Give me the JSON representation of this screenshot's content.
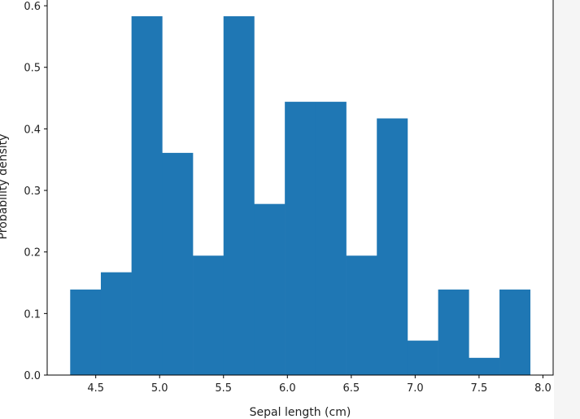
{
  "chart_data": {
    "type": "bar",
    "subtype": "histogram",
    "bin_edges": [
      4.3,
      4.54,
      4.78,
      5.02,
      5.26,
      5.5,
      5.74,
      5.98,
      6.22,
      6.46,
      6.7,
      6.94,
      7.18,
      7.42,
      7.66,
      7.9
    ],
    "values": [
      0.139,
      0.167,
      0.583,
      0.361,
      0.194,
      0.583,
      0.278,
      0.444,
      0.444,
      0.194,
      0.417,
      0.056,
      0.139,
      0.028,
      0.139
    ],
    "xlabel": "Sepal length (cm)",
    "ylabel": "Probability density",
    "xlim": [
      4.12,
      8.08
    ],
    "ylim": [
      0,
      0.612
    ],
    "xticks": [
      4.5,
      5.0,
      5.5,
      6.0,
      6.5,
      7.0,
      7.5,
      8.0
    ],
    "xtick_labels": [
      "4.5",
      "5.0",
      "5.5",
      "6.0",
      "6.5",
      "7.0",
      "7.5",
      "8.0"
    ],
    "yticks": [
      0.0,
      0.1,
      0.2,
      0.3,
      0.4,
      0.5,
      0.6
    ],
    "ytick_labels": [
      "0.0",
      "0.1",
      "0.2",
      "0.3",
      "0.4",
      "0.5",
      "0.6"
    ],
    "bar_color": "#1f77b4",
    "grid": false,
    "legend": false
  }
}
